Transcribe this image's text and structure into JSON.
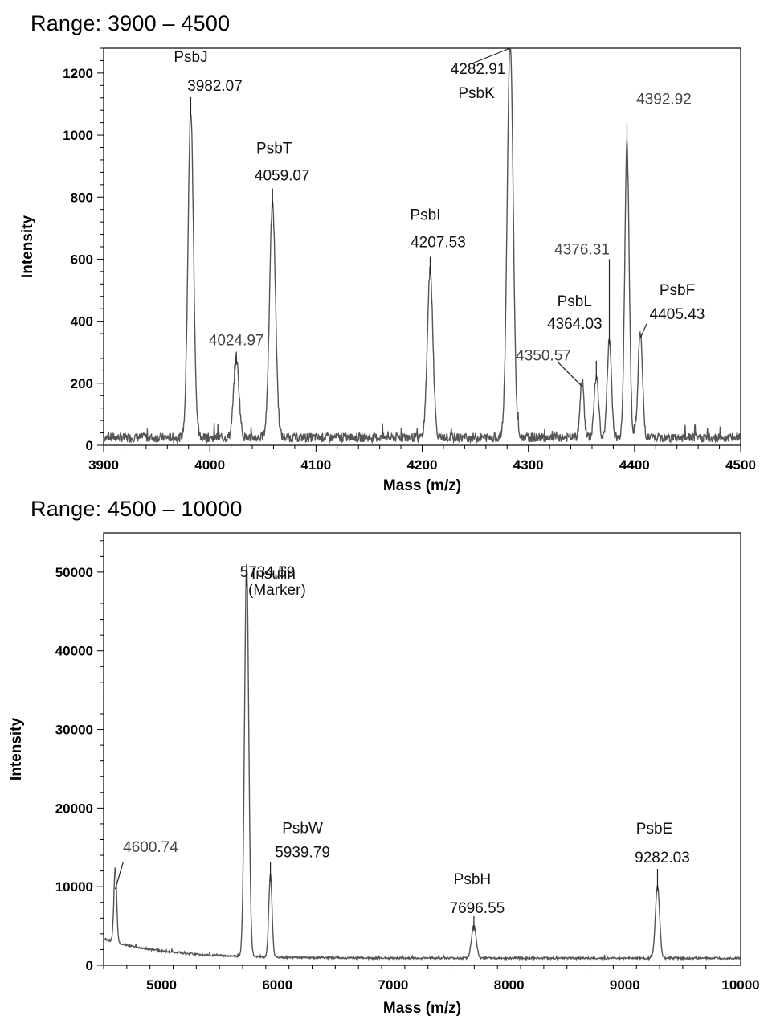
{
  "chart_data": [
    {
      "type": "line",
      "title": "Range: 3900 – 4500",
      "xlabel": "Mass (m/z)",
      "ylabel": "Intensity",
      "xlim": [
        3900,
        4500
      ],
      "ylim": [
        0,
        1280
      ],
      "xticks": [
        "3900",
        "4000",
        "4100",
        "4200",
        "4300",
        "4400",
        "4500"
      ],
      "yticks": [
        "0",
        "200",
        "400",
        "600",
        "800",
        "1000",
        "1200"
      ],
      "baseline": 25,
      "noise": 15,
      "peaks": [
        {
          "x": 3982.07,
          "y": 1050,
          "w": 2.6
        },
        {
          "x": 4024.97,
          "y": 255,
          "w": 2.5
        },
        {
          "x": 4059.07,
          "y": 755,
          "w": 2.8
        },
        {
          "x": 4207.53,
          "y": 540,
          "w": 2.6
        },
        {
          "x": 4282.91,
          "y": 1280,
          "w": 2.8
        },
        {
          "x": 4350.57,
          "y": 190,
          "w": 1.8
        },
        {
          "x": 4364.03,
          "y": 200,
          "w": 2.0
        },
        {
          "x": 4376.31,
          "y": 315,
          "w": 2.0
        },
        {
          "x": 4392.92,
          "y": 945,
          "w": 2.1
        },
        {
          "x": 4405.43,
          "y": 340,
          "w": 2.1
        }
      ],
      "annotations": [
        {
          "name": "PsbJ",
          "mass": "3982.07",
          "x": 3982.07,
          "y": 1050
        },
        {
          "name": "",
          "mass": "4024.97",
          "x": 4024.97,
          "y": 255
        },
        {
          "name": "PsbT",
          "mass": "4059.07",
          "x": 4059.07,
          "y": 755
        },
        {
          "name": "PsbI",
          "mass": "4207.53",
          "x": 4207.53,
          "y": 540
        },
        {
          "name": "PsbK",
          "mass": "4282.91",
          "x": 4282.91,
          "y": 1280
        },
        {
          "name": "",
          "mass": "4350.57",
          "x": 4350.57,
          "y": 190
        },
        {
          "name": "PsbL",
          "mass": "4364.03",
          "x": 4364.03,
          "y": 200
        },
        {
          "name": "",
          "mass": "4376.31",
          "x": 4376.31,
          "y": 315
        },
        {
          "name": "",
          "mass": "4392.92",
          "x": 4392.92,
          "y": 945
        },
        {
          "name": "PsbF",
          "mass": "4405.43",
          "x": 4405.43,
          "y": 340
        }
      ]
    },
    {
      "type": "line",
      "title": "Range: 4500 – 10000",
      "xlabel": "Mass (m/z)",
      "ylabel": "Intensity",
      "xlim": [
        4500,
        10000
      ],
      "ylim": [
        0,
        55000
      ],
      "xticks": [
        "5000",
        "6000",
        "7000",
        "8000",
        "9000",
        "10000"
      ],
      "yticks": [
        "0",
        "10000",
        "20000",
        "30000",
        "40000",
        "50000"
      ],
      "baseline": 900,
      "noise": 120,
      "peaks": [
        {
          "x": 4600.74,
          "y": 9500,
          "w": 12
        },
        {
          "x": 5734.59,
          "y": 50000,
          "w": 18
        },
        {
          "x": 5939.79,
          "y": 10500,
          "w": 14
        },
        {
          "x": 7696.55,
          "y": 4200,
          "w": 20
        },
        {
          "x": 9282.03,
          "y": 9200,
          "w": 18
        }
      ],
      "annotations": [
        {
          "name": "",
          "mass": "4600.74",
          "x": 4600.74,
          "y": 9500
        },
        {
          "name": "Insulin (Marker)",
          "mass": "5734.59",
          "x": 5734.59,
          "y": 50000
        },
        {
          "name": "PsbW",
          "mass": "5939.79",
          "x": 5939.79,
          "y": 10500
        },
        {
          "name": "PsbH",
          "mass": "7696.55",
          "x": 7696.55,
          "y": 4200
        },
        {
          "name": "PsbE",
          "mass": "9282.03",
          "x": 9282.03,
          "y": 9200
        }
      ]
    }
  ],
  "colors": {
    "trace": "#555555",
    "frame": "#000000"
  }
}
